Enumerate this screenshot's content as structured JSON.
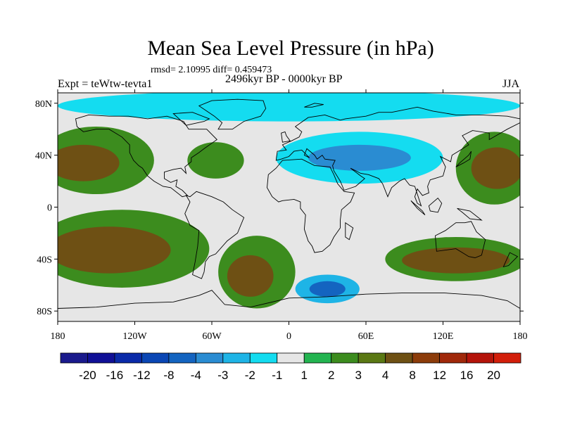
{
  "title": "Mean Sea Level Pressure (in hPa)",
  "stats": "rmsd= 2.10995 diff= 0.459473",
  "period": "2496kyr BP - 0000kyr BP",
  "experiment": "Expt = teWtw-tevta1",
  "season": "JJA",
  "lat_labels": [
    "80N",
    "40N",
    "0",
    "40S",
    "80S"
  ],
  "lat_values": [
    80,
    40,
    0,
    -40,
    -80
  ],
  "lon_labels": [
    "180",
    "120W",
    "60W",
    "0",
    "60E",
    "120E",
    "180"
  ],
  "lon_values": [
    -180,
    -120,
    -60,
    0,
    60,
    120,
    180
  ],
  "colorbar": {
    "labels": [
      "-20",
      "-16",
      "-12",
      "-8",
      "-4",
      "-3",
      "-2",
      "-1",
      "1",
      "2",
      "3",
      "4",
      "8",
      "12",
      "16",
      "20"
    ],
    "colors": [
      "#1a1a8c",
      "#101096",
      "#0a2aa8",
      "#0a46b4",
      "#1464c0",
      "#2a8cd2",
      "#1eb4e6",
      "#14dcf0",
      "#e6e6e6",
      "#23b450",
      "#3c8c1e",
      "#5a7814",
      "#6e5014",
      "#8c3c0a",
      "#a0280a",
      "#b4140a",
      "#d21e0a"
    ]
  },
  "field_regions": [
    {
      "name": "north-pacific-high",
      "lon": -150,
      "lat": 36,
      "rx": 45,
      "ry": 26,
      "level": 2
    },
    {
      "name": "north-pacific-high-core",
      "lon": -160,
      "lat": 34,
      "rx": 28,
      "ry": 14,
      "level": 4
    },
    {
      "name": "south-pacific-high",
      "lon": -130,
      "lat": -32,
      "rx": 68,
      "ry": 30,
      "level": 2
    },
    {
      "name": "south-pacific-high-core",
      "lon": -140,
      "lat": -33,
      "rx": 48,
      "ry": 18,
      "level": 4
    },
    {
      "name": "azores-high",
      "lon": -57,
      "lat": 36,
      "rx": 22,
      "ry": 14,
      "level": 2
    },
    {
      "name": "south-atlantic-high",
      "lon": -25,
      "lat": -50,
      "rx": 30,
      "ry": 28,
      "level": 2
    },
    {
      "name": "south-atlantic-high-core",
      "lon": -30,
      "lat": -53,
      "rx": 18,
      "ry": 16,
      "level": 4
    },
    {
      "name": "indian-ocean-high",
      "lon": 130,
      "lat": -40,
      "rx": 55,
      "ry": 17,
      "level": 2
    },
    {
      "name": "indian-ocean-high-core",
      "lon": 130,
      "lat": -41,
      "rx": 42,
      "ry": 10,
      "level": 4
    },
    {
      "name": "west-pacific-high",
      "lon": 160,
      "lat": 30,
      "rx": 30,
      "ry": 28,
      "level": 2
    },
    {
      "name": "west-pacific-high-core",
      "lon": 162,
      "lat": 30,
      "rx": 20,
      "ry": 16,
      "level": 4
    },
    {
      "name": "eurasian-low",
      "lon": 55,
      "lat": 38,
      "rx": 65,
      "ry": 20,
      "level": -2
    },
    {
      "name": "eurasian-low-core",
      "lon": 55,
      "lat": 38,
      "rx": 40,
      "ry": 10,
      "level": -4
    },
    {
      "name": "arctic-low",
      "lon": 0,
      "lat": 78,
      "rx": 180,
      "ry": 12,
      "level": -2
    },
    {
      "name": "southern-ocean-low",
      "lon": 30,
      "lat": -63,
      "rx": 25,
      "ry": 11,
      "level": -3
    },
    {
      "name": "southern-ocean-low-core",
      "lon": 30,
      "lat": -63,
      "rx": 14,
      "ry": 6,
      "level": -6
    }
  ]
}
